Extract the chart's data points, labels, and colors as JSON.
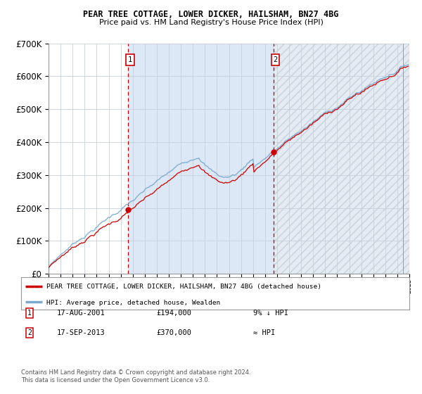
{
  "title": "PEAR TREE COTTAGE, LOWER DICKER, HAILSHAM, BN27 4BG",
  "subtitle": "Price paid vs. HM Land Registry's House Price Index (HPI)",
  "transaction1_date": "17-AUG-2001",
  "transaction1_price": 194000,
  "transaction1_label": "9% ↓ HPI",
  "transaction1_year": 2001.625,
  "transaction2_date": "17-SEP-2013",
  "transaction2_price": 370000,
  "transaction2_label": "≈ HPI",
  "transaction2_year": 2013.708,
  "legend_line1": "PEAR TREE COTTAGE, LOWER DICKER, HAILSHAM, BN27 4BG (detached house)",
  "legend_line2": "HPI: Average price, detached house, Wealden",
  "footer1": "Contains HM Land Registry data © Crown copyright and database right 2024.",
  "footer2": "This data is licensed under the Open Government Licence v3.0.",
  "xmin": 1995,
  "xmax": 2025,
  "ymin": 0,
  "ymax": 700000,
  "hpi_color": "#7aaad0",
  "price_color": "#cc0000",
  "bg_between_color": "#dce8f5",
  "bg_after_color": "#ccd8e8",
  "grid_color": "#c8d0dc",
  "label_box_color": "#cc0000",
  "vline1_color": "#cc0000",
  "vline2_color": "#cc0000"
}
